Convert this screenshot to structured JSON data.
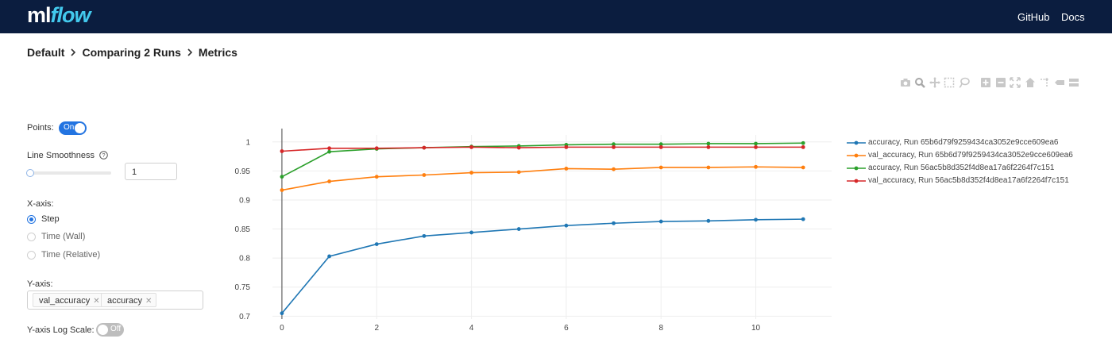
{
  "header": {
    "logo_ml": "ml",
    "logo_flow": "flow",
    "nav": [
      {
        "label": "GitHub"
      },
      {
        "label": "Docs"
      }
    ]
  },
  "breadcrumb": [
    "Default",
    "Comparing 2 Runs",
    "Metrics"
  ],
  "toolbar_icons": [
    "camera-icon",
    "zoom-icon",
    "pan-icon",
    "box-select-icon",
    "lasso-select-icon",
    "zoom-in-icon",
    "zoom-out-icon",
    "autoscale-icon",
    "reset-axes-icon",
    "spike-lines-icon",
    "hover-closest-icon",
    "hover-compare-icon"
  ],
  "controls": {
    "points_label": "Points:",
    "points_toggle": "On",
    "smoothness_label": "Line Smoothness",
    "smoothness_value": "1",
    "xaxis_label": "X-axis:",
    "xaxis_options": [
      "Step",
      "Time (Wall)",
      "Time (Relative)"
    ],
    "xaxis_selected": "Step",
    "yaxis_label": "Y-axis:",
    "yaxis_tags": [
      "val_accuracy",
      "accuracy"
    ],
    "log_scale_label": "Y-axis Log Scale:",
    "log_scale_toggle": "Off"
  },
  "chart_data": {
    "type": "line",
    "x_ticks": [
      "0",
      "2",
      "4",
      "6",
      "8",
      "10"
    ],
    "y_ticks": [
      "0.7",
      "0.75",
      "0.8",
      "0.85",
      "0.9",
      "0.95",
      "1"
    ],
    "xlim": [
      -0.2,
      11.6
    ],
    "ylim": [
      0.695,
      1.012
    ],
    "grid": true,
    "legend_position": "top-right",
    "x": [
      0,
      1,
      2,
      3,
      4,
      5,
      6,
      7,
      8,
      9,
      10,
      11
    ],
    "series": [
      {
        "name": "accuracy, Run 65b6d79f9259434ca3052e9cce609ea6",
        "color": "#1f77b4",
        "values": [
          0.705,
          0.803,
          0.824,
          0.838,
          0.844,
          0.85,
          0.856,
          0.86,
          0.863,
          0.864,
          0.866,
          0.867
        ]
      },
      {
        "name": "val_accuracy, Run 65b6d79f9259434ca3052e9cce609ea6",
        "color": "#ff7f0e",
        "values": [
          0.917,
          0.932,
          0.94,
          0.943,
          0.947,
          0.948,
          0.954,
          0.953,
          0.956,
          0.956,
          0.957,
          0.956
        ]
      },
      {
        "name": "accuracy, Run 56ac5b8d352f4d8ea17a6f2264f7c151",
        "color": "#2ca02c",
        "values": [
          0.94,
          0.983,
          0.988,
          0.99,
          0.992,
          0.993,
          0.995,
          0.996,
          0.996,
          0.997,
          0.997,
          0.998
        ]
      },
      {
        "name": "val_accuracy, Run 56ac5b8d352f4d8ea17a6f2264f7c151",
        "color": "#d62728",
        "values": [
          0.984,
          0.989,
          0.989,
          0.99,
          0.991,
          0.99,
          0.991,
          0.991,
          0.991,
          0.991,
          0.991,
          0.991
        ]
      }
    ]
  }
}
